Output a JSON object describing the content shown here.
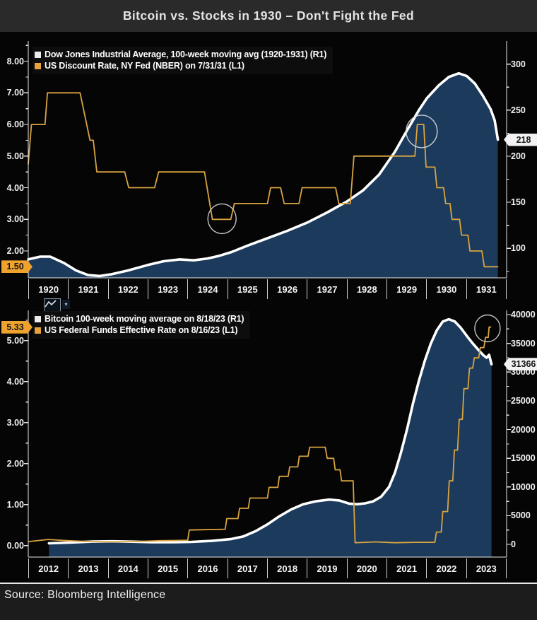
{
  "title": "Bitcoin vs. Stocks in 1930 – Don't Fight the Fed",
  "source": "Source: Bloomberg Intelligence",
  "colors": {
    "navy_fill": "#1b3a5c",
    "white_line": "#ffffff",
    "amber_line": "#d9a440",
    "badge_amber": "#f0a22e",
    "badge_white": "#f2f2f2",
    "plot_bg": "#050505",
    "title_band_bg": "#2a2a2a"
  },
  "icons": {
    "chart_type_label": "line-chart-icon",
    "dropdown_caret": "▾"
  },
  "chart_data": [
    {
      "id": "dow-1920s",
      "type": "line",
      "legend": [
        {
          "label": "Dow Jones Industrial Average, 100-week moving avg (1920-1931) (R1)",
          "color": "#ececec"
        },
        {
          "label": "US Discount Rate, NY Fed (NBER) on 7/31/31 (L1)",
          "color": "#e8a33b"
        }
      ],
      "x_axis": {
        "domain": [
          1920,
          1932
        ],
        "labels": [
          "1920",
          "1921",
          "1922",
          "1923",
          "1924",
          "1925",
          "1926",
          "1927",
          "1928",
          "1929",
          "1930",
          "1931"
        ]
      },
      "left_axis": {
        "range": [
          1.15,
          8.55
        ],
        "minor_step": 0.5,
        "ticks": [
          [
            8,
            "8.00"
          ],
          [
            7,
            "7.00"
          ],
          [
            6,
            "6.00"
          ],
          [
            5,
            "5.00"
          ],
          [
            4,
            "4.00"
          ],
          [
            3,
            "3.00"
          ],
          [
            2,
            "2.00"
          ]
        ],
        "badge": {
          "value": 1.5,
          "label": "1.50",
          "bg": "#f0a22e",
          "fg": "#151515"
        }
      },
      "right_axis": {
        "range": [
          68,
          322
        ],
        "minor_step": 25,
        "ticks": [
          [
            300,
            "300"
          ],
          [
            250,
            "250"
          ],
          [
            200,
            "200"
          ],
          [
            150,
            "150"
          ],
          [
            100,
            "100"
          ]
        ],
        "badge": {
          "value": 218,
          "label": "218",
          "bg": "#f2f2f2",
          "fg": "#151515"
        }
      },
      "series": [
        {
          "name": "dow-jones-100wk-ma",
          "axis": "right",
          "color": "#ffffff",
          "width": 3.6,
          "fill": "#1b3a5c",
          "points": [
            [
              1920.0,
              88
            ],
            [
              1920.3,
              91
            ],
            [
              1920.55,
              91
            ],
            [
              1920.9,
              84
            ],
            [
              1921.2,
              76
            ],
            [
              1921.5,
              71
            ],
            [
              1921.8,
              70
            ],
            [
              1922.1,
              72
            ],
            [
              1922.5,
              76
            ],
            [
              1923.0,
              82
            ],
            [
              1923.4,
              86
            ],
            [
              1923.8,
              88
            ],
            [
              1924.15,
              87
            ],
            [
              1924.5,
              89
            ],
            [
              1924.8,
              92
            ],
            [
              1925.1,
              96
            ],
            [
              1925.5,
              103
            ],
            [
              1926.0,
              111
            ],
            [
              1926.5,
              119
            ],
            [
              1927.0,
              128
            ],
            [
              1927.5,
              139
            ],
            [
              1928.0,
              151
            ],
            [
              1928.4,
              163
            ],
            [
              1928.8,
              180
            ],
            [
              1929.2,
              205
            ],
            [
              1929.5,
              228
            ],
            [
              1929.8,
              250
            ],
            [
              1930.0,
              263
            ],
            [
              1930.3,
              277
            ],
            [
              1930.55,
              286
            ],
            [
              1930.8,
              290
            ],
            [
              1931.0,
              287
            ],
            [
              1931.2,
              279
            ],
            [
              1931.4,
              266
            ],
            [
              1931.6,
              251
            ],
            [
              1931.7,
              239
            ],
            [
              1931.78,
              218
            ]
          ]
        },
        {
          "name": "us-discount-rate",
          "axis": "left",
          "color": "#d9a440",
          "width": 1.8,
          "points": [
            [
              1920.0,
              4.75
            ],
            [
              1920.08,
              6.0
            ],
            [
              1920.42,
              6.0
            ],
            [
              1920.48,
              7.0
            ],
            [
              1921.3,
              7.0
            ],
            [
              1921.55,
              5.5
            ],
            [
              1921.63,
              5.5
            ],
            [
              1921.72,
              4.5
            ],
            [
              1922.42,
              4.5
            ],
            [
              1922.52,
              4.0
            ],
            [
              1923.17,
              4.0
            ],
            [
              1923.27,
              4.5
            ],
            [
              1924.42,
              4.5
            ],
            [
              1924.62,
              3.0
            ],
            [
              1925.08,
              3.0
            ],
            [
              1925.17,
              3.5
            ],
            [
              1926.0,
              3.5
            ],
            [
              1926.08,
              4.0
            ],
            [
              1926.33,
              4.0
            ],
            [
              1926.42,
              3.5
            ],
            [
              1926.79,
              3.5
            ],
            [
              1926.87,
              4.0
            ],
            [
              1927.71,
              4.0
            ],
            [
              1927.79,
              3.5
            ],
            [
              1928.08,
              3.5
            ],
            [
              1928.17,
              5.0
            ],
            [
              1929.7,
              5.0
            ],
            [
              1929.76,
              6.0
            ],
            [
              1929.92,
              6.0
            ],
            [
              1929.98,
              4.65
            ],
            [
              1930.2,
              4.65
            ],
            [
              1930.25,
              4.0
            ],
            [
              1930.42,
              4.0
            ],
            [
              1930.47,
              3.5
            ],
            [
              1930.58,
              3.5
            ],
            [
              1930.63,
              3.0
            ],
            [
              1930.82,
              3.0
            ],
            [
              1930.87,
              2.5
            ],
            [
              1931.03,
              2.5
            ],
            [
              1931.08,
              2.0
            ],
            [
              1931.38,
              2.0
            ],
            [
              1931.44,
              1.5
            ],
            [
              1931.78,
              1.5
            ]
          ]
        }
      ],
      "annotations": [
        {
          "type": "circle",
          "x": 1924.86,
          "value": 3.02,
          "axis": "left",
          "r": 20
        },
        {
          "type": "circle",
          "x": 1929.87,
          "value": 5.78,
          "axis": "left",
          "r": 22
        }
      ]
    },
    {
      "id": "bitcoin-2020s",
      "type": "line",
      "legend": [
        {
          "label": "Bitcoin 100-week moving average on 8/18/23 (R1)",
          "color": "#ececec"
        },
        {
          "label": "US Federal Funds Effective Rate on 8/16/23 (L1)",
          "color": "#e8a33b"
        }
      ],
      "x_axis": {
        "domain": [
          2011.9,
          2023.9
        ],
        "labels": [
          "2012",
          "2013",
          "2014",
          "2015",
          "2016",
          "2017",
          "2018",
          "2019",
          "2020",
          "2021",
          "2022",
          "2023"
        ]
      },
      "left_axis": {
        "range": [
          -0.28,
          5.67
        ],
        "minor_step": 0.5,
        "ticks": [
          [
            5,
            "5.00"
          ],
          [
            4,
            "4.00"
          ],
          [
            3,
            "3.00"
          ],
          [
            2,
            "2.00"
          ],
          [
            1,
            "1.00"
          ],
          [
            0,
            "0.00"
          ]
        ],
        "badge": {
          "value": 5.33,
          "label": "5.33",
          "bg": "#f0a22e",
          "fg": "#151515"
        }
      },
      "right_axis": {
        "range": [
          -2200,
          40250
        ],
        "minor_step": 2500,
        "ticks": [
          [
            40000,
            "40000"
          ],
          [
            35000,
            "35000"
          ],
          [
            30000,
            "30000"
          ],
          [
            25000,
            "25000"
          ],
          [
            20000,
            "20000"
          ],
          [
            15000,
            "15000"
          ],
          [
            10000,
            "10000"
          ],
          [
            5000,
            "5000"
          ],
          [
            0,
            "0"
          ]
        ],
        "badge": {
          "value": 31366,
          "label": "31366",
          "bg": "#f2f2f2",
          "fg": "#151515"
        }
      },
      "series": [
        {
          "name": "bitcoin-100wk-ma",
          "axis": "right",
          "color": "#ffffff",
          "width": 3.6,
          "fill": "#1b3a5c",
          "points": [
            [
              2012.42,
              200
            ],
            [
              2013.0,
              350
            ],
            [
              2013.5,
              500
            ],
            [
              2014.0,
              550
            ],
            [
              2014.5,
              480
            ],
            [
              2015.0,
              400
            ],
            [
              2015.5,
              380
            ],
            [
              2016.0,
              450
            ],
            [
              2016.5,
              620
            ],
            [
              2017.0,
              950
            ],
            [
              2017.3,
              1400
            ],
            [
              2017.6,
              2300
            ],
            [
              2017.9,
              3500
            ],
            [
              2018.2,
              4900
            ],
            [
              2018.5,
              6100
            ],
            [
              2018.8,
              7000
            ],
            [
              2019.1,
              7500
            ],
            [
              2019.45,
              7800
            ],
            [
              2019.7,
              7650
            ],
            [
              2019.95,
              7100
            ],
            [
              2020.15,
              7000
            ],
            [
              2020.35,
              7150
            ],
            [
              2020.55,
              7500
            ],
            [
              2020.75,
              8300
            ],
            [
              2020.95,
              10000
            ],
            [
              2021.1,
              12500
            ],
            [
              2021.25,
              16000
            ],
            [
              2021.4,
              20000
            ],
            [
              2021.55,
              24500
            ],
            [
              2021.7,
              28500
            ],
            [
              2021.85,
              32000
            ],
            [
              2022.0,
              35000
            ],
            [
              2022.15,
              37300
            ],
            [
              2022.3,
              38800
            ],
            [
              2022.45,
              39200
            ],
            [
              2022.6,
              38800
            ],
            [
              2022.75,
              37700
            ],
            [
              2022.9,
              36300
            ],
            [
              2023.05,
              35000
            ],
            [
              2023.2,
              33800
            ],
            [
              2023.32,
              32900
            ],
            [
              2023.4,
              32500
            ],
            [
              2023.46,
              33000
            ],
            [
              2023.52,
              31366
            ]
          ]
        },
        {
          "name": "us-fed-funds-rate",
          "axis": "left",
          "color": "#d9a440",
          "width": 1.8,
          "points": [
            [
              2011.92,
              0.1
            ],
            [
              2012.4,
              0.15
            ],
            [
              2012.9,
              0.12
            ],
            [
              2013.4,
              0.1
            ],
            [
              2014.0,
              0.09
            ],
            [
              2014.6,
              0.1
            ],
            [
              2015.2,
              0.12
            ],
            [
              2015.9,
              0.13
            ],
            [
              2015.94,
              0.38
            ],
            [
              2016.84,
              0.4
            ],
            [
              2016.88,
              0.66
            ],
            [
              2017.16,
              0.66
            ],
            [
              2017.2,
              0.91
            ],
            [
              2017.42,
              0.91
            ],
            [
              2017.46,
              1.16
            ],
            [
              2017.9,
              1.16
            ],
            [
              2017.94,
              1.42
            ],
            [
              2018.16,
              1.42
            ],
            [
              2018.2,
              1.69
            ],
            [
              2018.42,
              1.69
            ],
            [
              2018.46,
              1.92
            ],
            [
              2018.66,
              1.92
            ],
            [
              2018.7,
              2.18
            ],
            [
              2018.92,
              2.18
            ],
            [
              2018.96,
              2.4
            ],
            [
              2019.35,
              2.4
            ],
            [
              2019.4,
              2.13
            ],
            [
              2019.56,
              2.13
            ],
            [
              2019.6,
              1.85
            ],
            [
              2019.72,
              1.85
            ],
            [
              2019.76,
              1.58
            ],
            [
              2020.05,
              1.58
            ],
            [
              2020.1,
              0.07
            ],
            [
              2020.6,
              0.09
            ],
            [
              2021.1,
              0.07
            ],
            [
              2021.6,
              0.08
            ],
            [
              2022.1,
              0.08
            ],
            [
              2022.14,
              0.33
            ],
            [
              2022.26,
              0.33
            ],
            [
              2022.3,
              0.83
            ],
            [
              2022.42,
              0.83
            ],
            [
              2022.46,
              1.58
            ],
            [
              2022.55,
              1.58
            ],
            [
              2022.59,
              2.33
            ],
            [
              2022.67,
              2.33
            ],
            [
              2022.71,
              3.08
            ],
            [
              2022.79,
              3.08
            ],
            [
              2022.83,
              3.83
            ],
            [
              2022.93,
              3.83
            ],
            [
              2022.97,
              4.33
            ],
            [
              2023.05,
              4.33
            ],
            [
              2023.09,
              4.58
            ],
            [
              2023.2,
              4.58
            ],
            [
              2023.24,
              4.83
            ],
            [
              2023.33,
              4.83
            ],
            [
              2023.37,
              5.08
            ],
            [
              2023.44,
              5.08
            ],
            [
              2023.46,
              5.33
            ],
            [
              2023.5,
              5.33
            ]
          ]
        }
      ],
      "annotations": [
        {
          "type": "circle",
          "x": 2023.42,
          "value": 5.3,
          "axis": "left",
          "r": 18
        }
      ]
    }
  ]
}
